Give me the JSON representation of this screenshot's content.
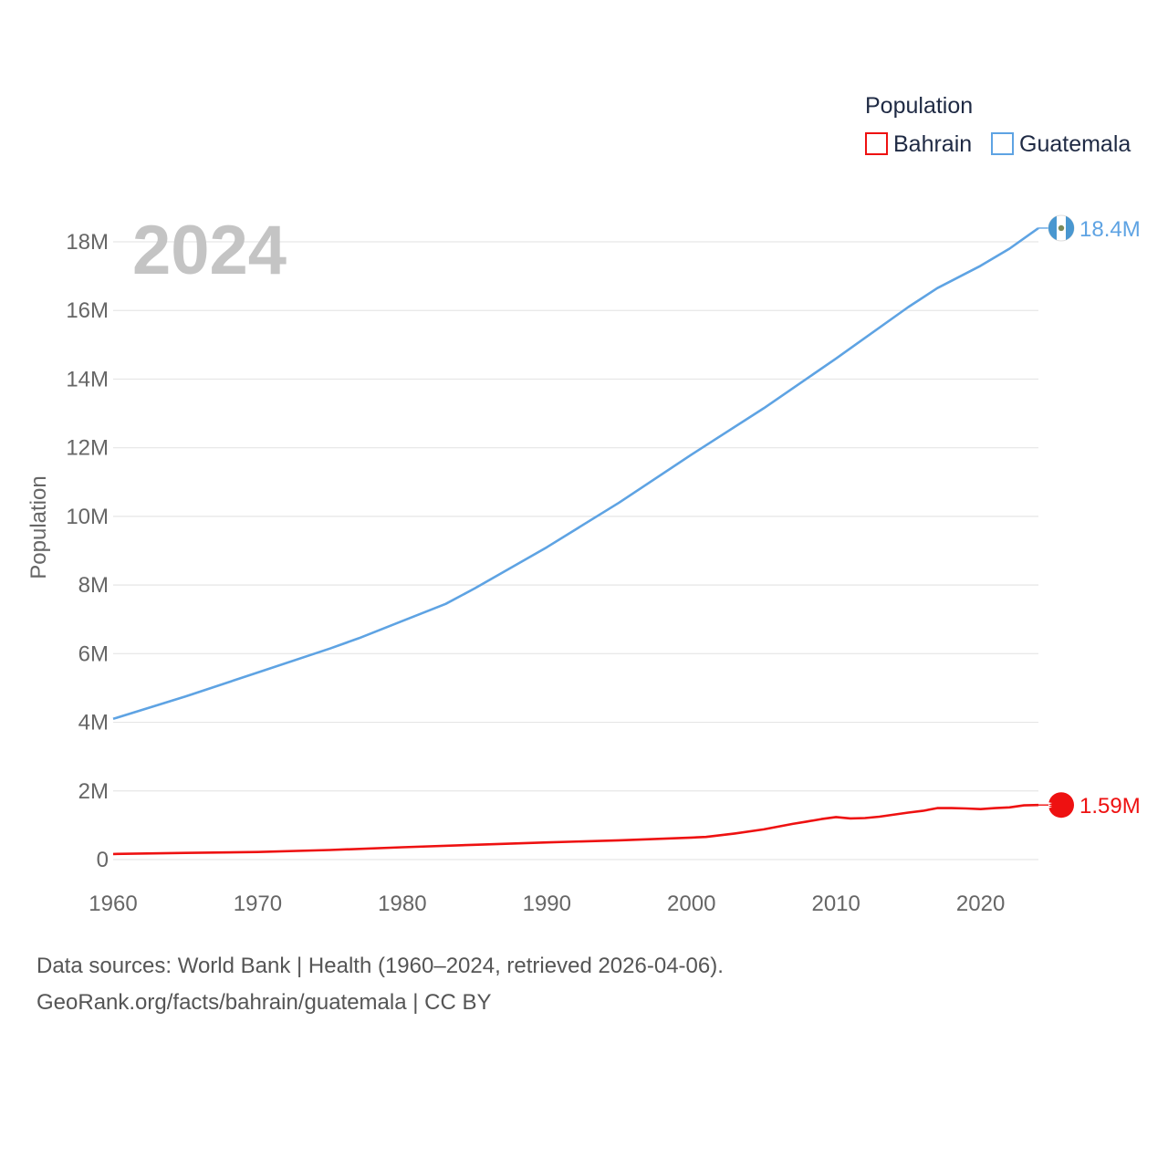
{
  "colors": {
    "bahrain": "#ee1111",
    "guatemala": "#5ea3e3",
    "grid": "#e6e6e6",
    "year": "#c4c4c4",
    "text": "#666666"
  },
  "legend": {
    "title": "Population",
    "items": [
      {
        "name": "Bahrain",
        "color": "#ee1111"
      },
      {
        "name": "Guatemala",
        "color": "#5ea3e3"
      }
    ]
  },
  "chart_data": {
    "type": "line",
    "title": "Population",
    "year_label": "2024",
    "xlabel": "",
    "ylabel": "Population",
    "xlim": [
      1960,
      2024
    ],
    "ylim": [
      0,
      18000000
    ],
    "x_ticks": [
      1960,
      1970,
      1980,
      1990,
      2000,
      2010,
      2020
    ],
    "x_tick_labels": [
      "1960",
      "1970",
      "1980",
      "1990",
      "2000",
      "2010",
      "2020"
    ],
    "y_ticks": [
      0,
      2000000,
      4000000,
      6000000,
      8000000,
      10000000,
      12000000,
      14000000,
      16000000,
      18000000
    ],
    "y_tick_labels": [
      "0",
      "2M",
      "4M",
      "6M",
      "8M",
      "10M",
      "12M",
      "14M",
      "16M",
      "18M"
    ],
    "grid": true,
    "legend_position": "top-right",
    "series": [
      {
        "name": "Guatemala",
        "end_label": "18.4M",
        "x": [
          1960,
          1965,
          1970,
          1975,
          1977,
          1980,
          1983,
          1985,
          1990,
          1995,
          2000,
          2005,
          2010,
          2015,
          2017,
          2020,
          2022,
          2024
        ],
        "values": [
          4100000,
          4750000,
          5450000,
          6150000,
          6450000,
          6950000,
          7450000,
          7900000,
          9100000,
          10400000,
          11800000,
          13150000,
          14600000,
          16100000,
          16650000,
          17300000,
          17800000,
          18400000
        ]
      },
      {
        "name": "Bahrain",
        "end_label": "1.59M",
        "x": [
          1960,
          1965,
          1970,
          1975,
          1980,
          1985,
          1990,
          1995,
          2000,
          2001,
          2003,
          2005,
          2007,
          2008,
          2009,
          2010,
          2011,
          2012,
          2013,
          2015,
          2016,
          2017,
          2018,
          2019,
          2020,
          2021,
          2022,
          2023,
          2024
        ],
        "values": [
          162000,
          195000,
          220000,
          280000,
          360000,
          430000,
          500000,
          560000,
          640000,
          660000,
          760000,
          880000,
          1040000,
          1110000,
          1180000,
          1240000,
          1200000,
          1210000,
          1250000,
          1370000,
          1420000,
          1500000,
          1500000,
          1490000,
          1470000,
          1500000,
          1520000,
          1580000,
          1590000
        ]
      }
    ]
  },
  "footer": {
    "line1": "Data sources: World Bank | Health (1960–2024, retrieved 2026-04-06).",
    "line2": "GeoRank.org/facts/bahrain/guatemala | CC BY"
  }
}
